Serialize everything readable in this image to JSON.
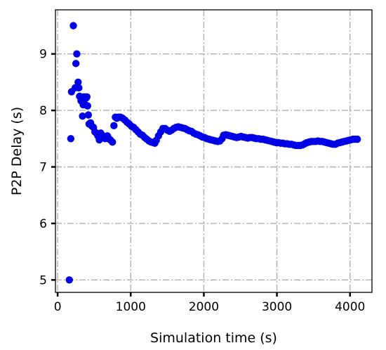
{
  "chart_data": {
    "type": "scatter",
    "title": "",
    "xlabel": "Simulation time (s)",
    "ylabel": "P2P Delay (s)",
    "xlim": [
      -30,
      4300
    ],
    "ylim": [
      4.78,
      9.78
    ],
    "xticks": [
      0,
      1000,
      2000,
      3000,
      4000
    ],
    "yticks": [
      5,
      6,
      7,
      8,
      9
    ],
    "grid": true,
    "grid_style": "dash-dot",
    "legend": "none",
    "colors": {
      "marker": "#0000e6",
      "grid": "#b0b0b0"
    },
    "series": [
      {
        "points": [
          [
            160,
            5.0
          ],
          [
            180,
            7.5
          ],
          [
            190,
            8.33
          ],
          [
            215,
            9.5
          ],
          [
            240,
            8.4
          ],
          [
            250,
            8.83
          ],
          [
            262,
            9.0
          ],
          [
            280,
            8.5
          ],
          [
            290,
            8.4
          ],
          [
            300,
            8.25
          ],
          [
            320,
            8.17
          ],
          [
            340,
            7.9
          ],
          [
            350,
            8.1
          ],
          [
            360,
            8.24
          ],
          [
            380,
            8.1
          ],
          [
            390,
            8.22
          ],
          [
            400,
            8.24
          ],
          [
            410,
            8.08
          ],
          [
            420,
            7.92
          ],
          [
            430,
            7.76
          ],
          [
            450,
            7.78
          ],
          [
            470,
            7.72
          ],
          [
            490,
            7.7
          ],
          [
            510,
            7.62
          ],
          [
            530,
            7.6
          ],
          [
            550,
            7.55
          ],
          [
            570,
            7.48
          ],
          [
            590,
            7.6
          ],
          [
            620,
            7.55
          ],
          [
            650,
            7.5
          ],
          [
            680,
            7.55
          ],
          [
            700,
            7.5
          ],
          [
            720,
            7.48
          ],
          [
            750,
            7.44
          ],
          [
            770,
            7.73
          ],
          [
            790,
            7.88
          ],
          [
            810,
            7.86
          ],
          [
            830,
            7.88
          ],
          [
            860,
            7.88
          ],
          [
            890,
            7.86
          ],
          [
            920,
            7.83
          ],
          [
            950,
            7.79
          ],
          [
            980,
            7.76
          ],
          [
            1010,
            7.72
          ],
          [
            1040,
            7.7
          ],
          [
            1070,
            7.66
          ],
          [
            1100,
            7.62
          ],
          [
            1130,
            7.58
          ],
          [
            1160,
            7.56
          ],
          [
            1190,
            7.52
          ],
          [
            1220,
            7.49
          ],
          [
            1250,
            7.46
          ],
          [
            1280,
            7.44
          ],
          [
            1310,
            7.43
          ],
          [
            1330,
            7.42
          ],
          [
            1350,
            7.47
          ],
          [
            1380,
            7.55
          ],
          [
            1410,
            7.62
          ],
          [
            1440,
            7.68
          ],
          [
            1470,
            7.68
          ],
          [
            1500,
            7.65
          ],
          [
            1530,
            7.63
          ],
          [
            1560,
            7.65
          ],
          [
            1590,
            7.68
          ],
          [
            1620,
            7.7
          ],
          [
            1650,
            7.71
          ],
          [
            1680,
            7.7
          ],
          [
            1710,
            7.69
          ],
          [
            1740,
            7.68
          ],
          [
            1770,
            7.66
          ],
          [
            1800,
            7.64
          ],
          [
            1830,
            7.63
          ],
          [
            1860,
            7.6
          ],
          [
            1890,
            7.58
          ],
          [
            1920,
            7.57
          ],
          [
            1950,
            7.55
          ],
          [
            1980,
            7.53
          ],
          [
            2010,
            7.52
          ],
          [
            2040,
            7.5
          ],
          [
            2070,
            7.49
          ],
          [
            2100,
            7.48
          ],
          [
            2130,
            7.47
          ],
          [
            2160,
            7.46
          ],
          [
            2190,
            7.45
          ],
          [
            2220,
            7.46
          ],
          [
            2250,
            7.5
          ],
          [
            2270,
            7.56
          ],
          [
            2300,
            7.57
          ],
          [
            2330,
            7.56
          ],
          [
            2360,
            7.55
          ],
          [
            2390,
            7.54
          ],
          [
            2420,
            7.53
          ],
          [
            2450,
            7.52
          ],
          [
            2480,
            7.53
          ],
          [
            2510,
            7.54
          ],
          [
            2540,
            7.53
          ],
          [
            2570,
            7.52
          ],
          [
            2600,
            7.51
          ],
          [
            2630,
            7.52
          ],
          [
            2660,
            7.52
          ],
          [
            2690,
            7.51
          ],
          [
            2720,
            7.5
          ],
          [
            2750,
            7.5
          ],
          [
            2780,
            7.49
          ],
          [
            2810,
            7.49
          ],
          [
            2840,
            7.48
          ],
          [
            2870,
            7.47
          ],
          [
            2900,
            7.46
          ],
          [
            2930,
            7.45
          ],
          [
            2960,
            7.44
          ],
          [
            2990,
            7.43
          ],
          [
            3020,
            7.43
          ],
          [
            3050,
            7.42
          ],
          [
            3080,
            7.42
          ],
          [
            3110,
            7.41
          ],
          [
            3140,
            7.41
          ],
          [
            3170,
            7.4
          ],
          [
            3200,
            7.4
          ],
          [
            3230,
            7.39
          ],
          [
            3260,
            7.38
          ],
          [
            3290,
            7.38
          ],
          [
            3320,
            7.38
          ],
          [
            3350,
            7.39
          ],
          [
            3380,
            7.41
          ],
          [
            3410,
            7.43
          ],
          [
            3440,
            7.44
          ],
          [
            3470,
            7.45
          ],
          [
            3500,
            7.45
          ],
          [
            3530,
            7.45
          ],
          [
            3560,
            7.46
          ],
          [
            3590,
            7.45
          ],
          [
            3620,
            7.45
          ],
          [
            3650,
            7.44
          ],
          [
            3680,
            7.43
          ],
          [
            3710,
            7.42
          ],
          [
            3740,
            7.41
          ],
          [
            3770,
            7.4
          ],
          [
            3800,
            7.4
          ],
          [
            3830,
            7.42
          ],
          [
            3860,
            7.43
          ],
          [
            3890,
            7.44
          ],
          [
            3920,
            7.45
          ],
          [
            3950,
            7.46
          ],
          [
            3980,
            7.47
          ],
          [
            4010,
            7.48
          ],
          [
            4040,
            7.49
          ],
          [
            4070,
            7.49
          ],
          [
            4100,
            7.49
          ]
        ]
      }
    ]
  }
}
